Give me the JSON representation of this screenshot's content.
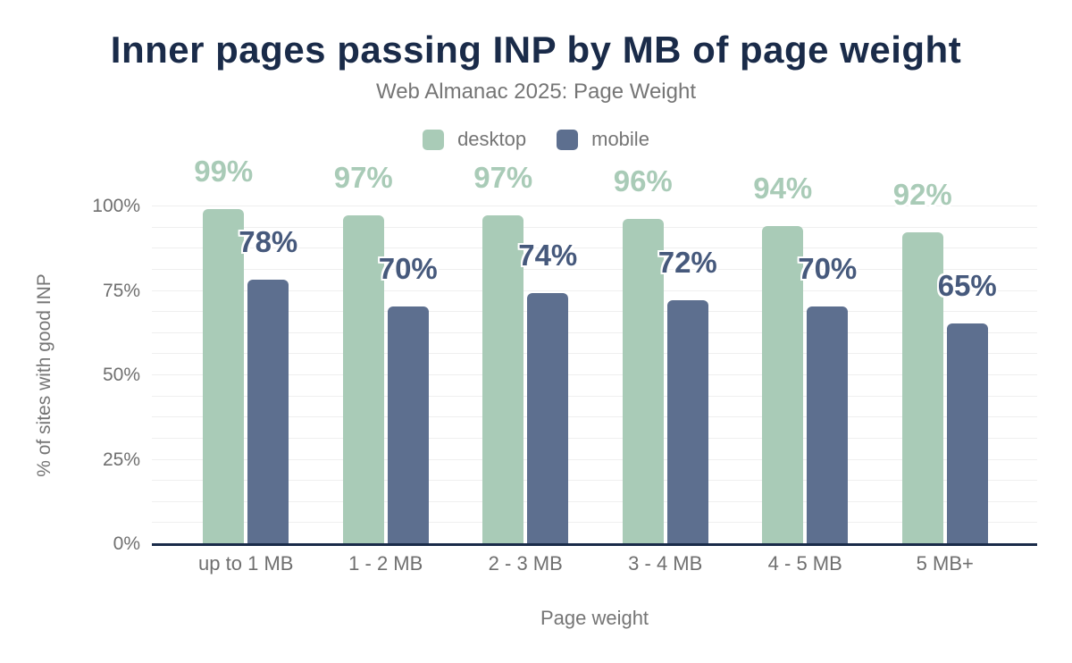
{
  "chart": {
    "title": "Inner pages passing INP by MB of page weight",
    "subtitle": "Web Almanac 2025: Page Weight",
    "x_axis_title": "Page weight",
    "y_axis_title": "% of sites with good INP"
  },
  "legend": [
    {
      "label": "desktop",
      "color": "#a9cbb7"
    },
    {
      "label": "mobile",
      "color": "#5d6f8f"
    }
  ],
  "chart_data": {
    "type": "bar",
    "title": "Inner pages passing INP by MB of page weight",
    "subtitle": "Web Almanac 2025: Page Weight",
    "categories": [
      "up to 1 MB",
      "1 - 2 MB",
      "2 - 3 MB",
      "3 - 4 MB",
      "4 - 5 MB",
      "5 MB+"
    ],
    "series": [
      {
        "name": "desktop",
        "values": [
          99,
          97,
          97,
          96,
          94,
          92
        ],
        "color": "#a9cbb7",
        "label_color": "#a9cbb7"
      },
      {
        "name": "mobile",
        "values": [
          78,
          70,
          74,
          72,
          70,
          65
        ],
        "color": "#5d6f8f",
        "label_color": "#46597c"
      }
    ],
    "value_suffix": "%",
    "xlabel": "Page weight",
    "ylabel": "% of sites with good INP",
    "yticks": [
      "0%",
      "25%",
      "50%",
      "75%",
      "100%"
    ],
    "ytick_values": [
      0,
      25,
      50,
      75,
      100
    ],
    "ylim": [
      0,
      100
    ],
    "grid": "horizontal, minor lines every 6.25%",
    "legend_position": "top",
    "data_labels": "above bars"
  },
  "colors": {
    "title_navy": "#1a2b49",
    "axis_line": "#1a2b49",
    "text_gray": "#757575",
    "tick_gray": "#6f6f6f",
    "gridline": "#efefef",
    "background": "#ffffff"
  }
}
